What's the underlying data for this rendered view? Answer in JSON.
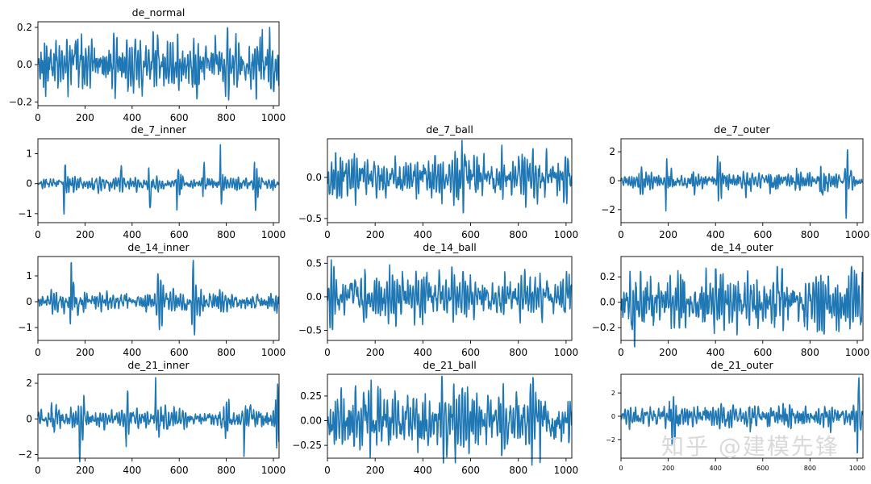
{
  "watermark": "知乎 @建模先锋",
  "colors": {
    "line": "#1f77b4",
    "axes": "#000000",
    "background": "#ffffff"
  },
  "chart_data": [
    {
      "type": "line",
      "title": "de_normal",
      "xlim": [
        0,
        1024
      ],
      "xticks": [
        0,
        200,
        400,
        600,
        800,
        1000
      ],
      "ylim": [
        -0.22,
        0.23
      ],
      "yticks": [
        -0.2,
        0.0,
        0.2
      ],
      "ytick_labels": [
        "−0.2",
        "0.0",
        "0.2"
      ],
      "samples": 1024,
      "amplitude": 0.2,
      "envelope": "steady",
      "grid": false
    },
    {
      "type": "line",
      "title": "de_7_inner",
      "xlim": [
        0,
        1024
      ],
      "xticks": [
        0,
        200,
        400,
        600,
        800,
        1000
      ],
      "ylim": [
        -1.3,
        1.5
      ],
      "yticks": [
        -1,
        0,
        1
      ],
      "ytick_labels": [
        "−1",
        "0",
        "1"
      ],
      "samples": 1024,
      "amplitude": 1.3,
      "envelope": "bursts",
      "bursts": [
        110,
        230,
        345,
        470,
        590,
        700,
        775,
        920
      ],
      "grid": false
    },
    {
      "type": "line",
      "title": "de_7_ball",
      "xlim": [
        0,
        1024
      ],
      "xticks": [
        0,
        200,
        400,
        600,
        800,
        1000
      ],
      "ylim": [
        -0.55,
        0.47
      ],
      "yticks": [
        -0.5,
        0.0
      ],
      "ytick_labels": [
        "−0.5",
        "0.0"
      ],
      "samples": 1024,
      "amplitude": 0.45,
      "envelope": "steady",
      "grid": false
    },
    {
      "type": "line",
      "title": "de_7_outer",
      "xlim": [
        0,
        1024
      ],
      "xticks": [
        0,
        200,
        400,
        600,
        800,
        1000
      ],
      "ylim": [
        -2.9,
        2.9
      ],
      "yticks": [
        -2,
        0,
        2
      ],
      "ytick_labels": [
        "−2",
        "0",
        "2"
      ],
      "samples": 1024,
      "amplitude": 2.6,
      "envelope": "bursts",
      "bursts": [
        75,
        190,
        300,
        410,
        520,
        630,
        740,
        845,
        950
      ],
      "grid": false
    },
    {
      "type": "line",
      "title": "de_14_inner",
      "xlim": [
        0,
        1024
      ],
      "xticks": [
        0,
        200,
        400,
        600,
        800,
        1000
      ],
      "ylim": [
        -1.5,
        1.75
      ],
      "yticks": [
        -1,
        0,
        1
      ],
      "ytick_labels": [
        "−1",
        "0",
        "1"
      ],
      "samples": 1024,
      "amplitude": 1.6,
      "envelope": "bursts",
      "bursts": [
        140,
        505,
        655
      ],
      "grid": false
    },
    {
      "type": "line",
      "title": "de_14_ball",
      "xlim": [
        0,
        1024
      ],
      "xticks": [
        0,
        200,
        400,
        600,
        800,
        1000
      ],
      "ylim": [
        -0.65,
        0.6
      ],
      "yticks": [
        -0.5,
        0.0,
        0.5
      ],
      "ytick_labels": [
        "−0.5",
        "0.0",
        "0.5"
      ],
      "samples": 1024,
      "amplitude": 0.55,
      "envelope": "steady",
      "grid": false
    },
    {
      "type": "line",
      "title": "de_14_outer",
      "xlim": [
        0,
        1024
      ],
      "xticks": [
        0,
        200,
        400,
        600,
        800,
        1000
      ],
      "ylim": [
        -0.3,
        0.36
      ],
      "yticks": [
        -0.2,
        0.0,
        0.2
      ],
      "ytick_labels": [
        "−0.2",
        "0.0",
        "0.2"
      ],
      "samples": 1024,
      "amplitude": 0.35,
      "envelope": "steady",
      "grid": false
    },
    {
      "type": "line",
      "title": "de_21_inner",
      "xlim": [
        0,
        1024
      ],
      "xticks": [
        0,
        200,
        400,
        600,
        800,
        1000
      ],
      "ylim": [
        -2.2,
        2.5
      ],
      "yticks": [
        -2,
        0,
        2
      ],
      "ytick_labels": [
        "−2",
        "0",
        "2"
      ],
      "samples": 1024,
      "amplitude": 2.4,
      "envelope": "bursts",
      "bursts": [
        55,
        175,
        375,
        500,
        790,
        875,
        1010
      ],
      "grid": false
    },
    {
      "type": "line",
      "title": "de_21_ball",
      "xlim": [
        0,
        1024
      ],
      "xticks": [
        0,
        200,
        400,
        600,
        800,
        1000
      ],
      "ylim": [
        -0.38,
        0.47
      ],
      "yticks": [
        -0.25,
        0.0,
        0.25
      ],
      "ytick_labels": [
        "−0.25",
        "0.00",
        "0.25"
      ],
      "samples": 1024,
      "amplitude": 0.45,
      "envelope": "steady",
      "grid": false
    },
    {
      "type": "line",
      "title": "de_21_outer",
      "xlim": [
        0,
        1024
      ],
      "xticks": [
        0,
        200,
        400,
        600,
        800,
        1000
      ],
      "ylim": [
        -3.6,
        3.6
      ],
      "yticks": [
        -2,
        0,
        2
      ],
      "ytick_labels": [
        "−2",
        "0",
        "2"
      ],
      "samples": 1024,
      "amplitude": 3.3,
      "envelope": "bursts",
      "bursts": [
        205,
        545,
        1000
      ],
      "grid": false
    }
  ]
}
